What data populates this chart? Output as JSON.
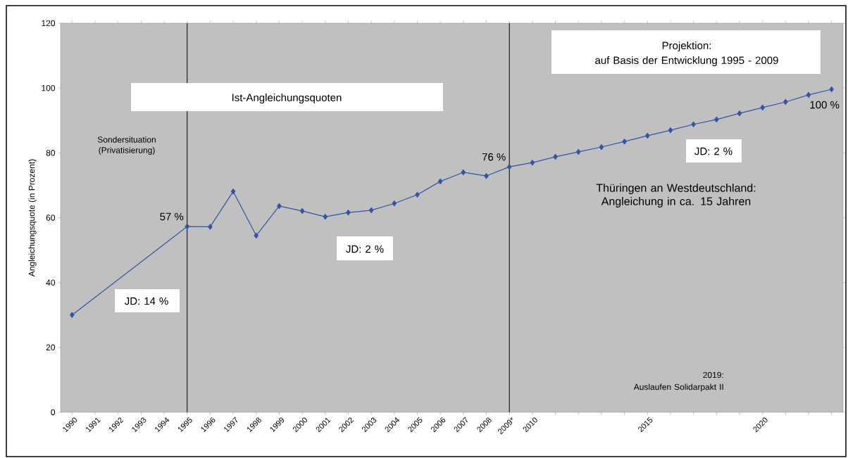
{
  "chart_data": {
    "type": "line",
    "ylabel": "Angleichungsquote (in Prozent)",
    "x": [
      1990,
      1991,
      1992,
      1993,
      1994,
      1995,
      1996,
      1997,
      1998,
      1999,
      2000,
      2001,
      2002,
      2003,
      2004,
      2005,
      2006,
      2007,
      2008,
      2009,
      2010,
      2011,
      2012,
      2013,
      2014,
      2015,
      2016,
      2017,
      2018,
      2019,
      2020,
      2021,
      2022,
      2023
    ],
    "series": [
      {
        "color": "#3355a5",
        "values": [
          30,
          null,
          null,
          null,
          null,
          57.3,
          57.2,
          68.1,
          54.5,
          63.6,
          62.1,
          60.3,
          61.6,
          62.3,
          64.4,
          67.1,
          71.2,
          74.0,
          72.9,
          75.7,
          77.0,
          78.8,
          80.3,
          81.8,
          83.5,
          85.3,
          87.0,
          88.8,
          90.3,
          92.2,
          94.0,
          95.7,
          97.9,
          99.6
        ]
      }
    ],
    "xlim": [
      1989.5,
      2023.5
    ],
    "ylim": [
      0,
      120
    ],
    "xticks": [
      1990,
      1991,
      1992,
      1993,
      1994,
      1995,
      1996,
      1997,
      1998,
      1999,
      2000,
      2001,
      2002,
      2003,
      2004,
      2005,
      2006,
      2007,
      2008,
      {
        "value": 2009,
        "label": "2009*"
      },
      2010,
      {
        "value": 2011,
        "label": null
      },
      {
        "value": 2012,
        "label": null
      },
      {
        "value": 2013,
        "label": null
      },
      {
        "value": 2014,
        "label": null
      },
      2015,
      {
        "value": 2016,
        "label": null
      },
      {
        "value": 2017,
        "label": null
      },
      {
        "value": 2018,
        "label": null
      },
      {
        "value": 2019,
        "label": null
      },
      2020,
      {
        "value": 2021,
        "label": null
      },
      {
        "value": 2022,
        "label": null
      },
      {
        "value": 2023,
        "label": null
      }
    ],
    "yticks": [
      0,
      20,
      40,
      60,
      80,
      100,
      120
    ],
    "ref_lines": [
      {
        "axis": "x",
        "value": 1995,
        "color": "#000000"
      },
      {
        "axis": "x",
        "value": 2009,
        "color": "#000000"
      }
    ],
    "annotations": [
      "Ist-Angleichungsquoten",
      "Projektion:",
      "auf Basis der Entwicklung 1995 - 2009",
      "Sondersituation (Privatisierung)",
      "JD: 14 %",
      "JD: 2 %",
      "JD: 2 %",
      "Thüringen an Westdeutschland: Angleichung in ca. 15 Jahren",
      "2019:",
      "Auslaufen Solidarpakt II",
      {
        "text": "57 %",
        "x": 1995,
        "y": 57.3
      },
      {
        "text": "76 %",
        "x": 2009,
        "y": 75.7
      },
      {
        "text": "100 %",
        "x": 2023,
        "y": 99.6
      }
    ],
    "marker": "diamond",
    "line_style": "solid",
    "grid": false,
    "legend": false
  }
}
